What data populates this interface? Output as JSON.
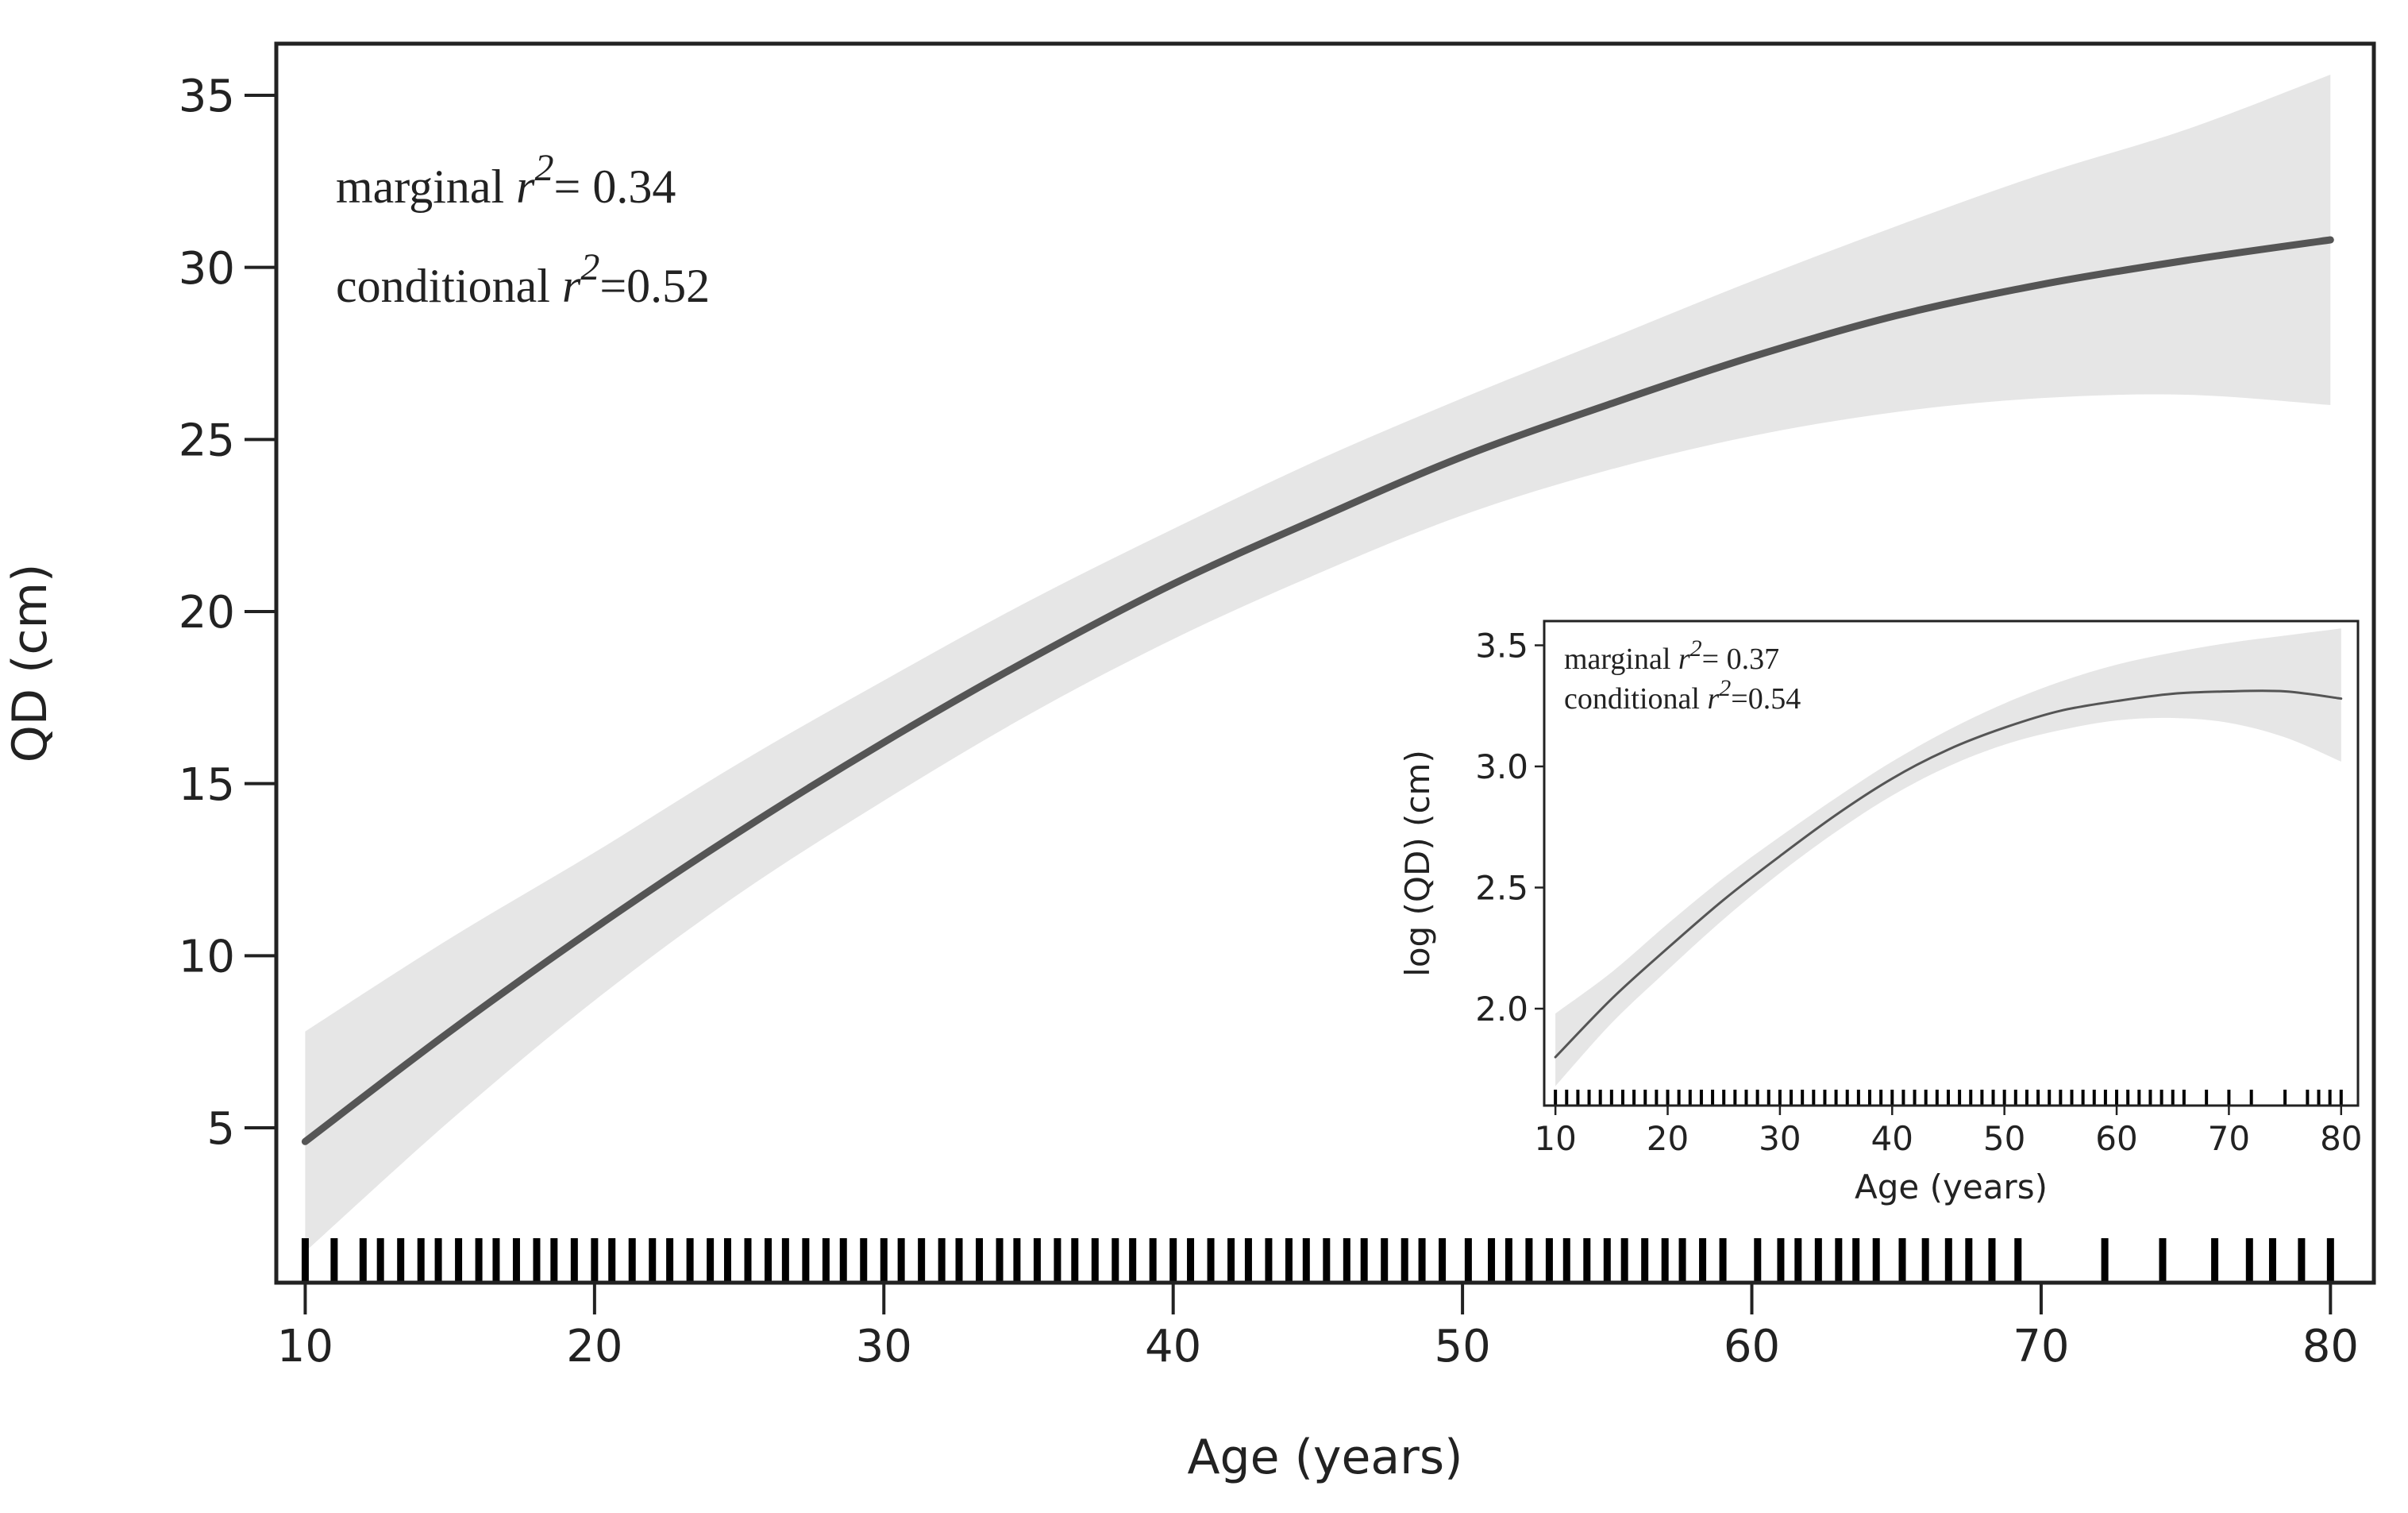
{
  "colors": {
    "band": "#e6e6e6",
    "line": "#555555",
    "axis": "#222222",
    "rug": "#000000"
  },
  "chart_data": [
    {
      "type": "line",
      "panel": "main",
      "xlabel": "Age (years)",
      "ylabel": "QD (cm)",
      "xlim": [
        9,
        81.5
      ],
      "ylim": [
        0.5,
        36.5
      ],
      "xticks": [
        10,
        20,
        30,
        40,
        50,
        60,
        70,
        80
      ],
      "yticks": [
        5,
        10,
        15,
        20,
        25,
        30,
        35
      ],
      "annotation": {
        "line1_prefix": "marginal ",
        "line1_r": "r",
        "line1_exp": "2",
        "line1_suffix": "= 0.34",
        "line2_prefix": "conditional ",
        "line2_r": "r",
        "line2_exp": "2",
        "line2_suffix": "=0.52"
      },
      "series": [
        {
          "name": "fit",
          "x": [
            10,
            15,
            20,
            25,
            30,
            35,
            40,
            45,
            50,
            55,
            60,
            65,
            70,
            75,
            80
          ],
          "y": [
            4.6,
            7.8,
            10.8,
            13.6,
            16.2,
            18.6,
            20.8,
            22.7,
            24.5,
            26.0,
            27.4,
            28.6,
            29.5,
            30.2,
            30.8
          ],
          "lower": [
            1.4,
            5.2,
            8.7,
            11.8,
            14.5,
            17.0,
            19.2,
            21.1,
            22.8,
            24.1,
            25.1,
            25.8,
            26.2,
            26.3,
            26.0
          ],
          "upper": [
            7.8,
            10.5,
            13.0,
            15.6,
            18.0,
            20.3,
            22.4,
            24.4,
            26.2,
            27.9,
            29.6,
            31.2,
            32.7,
            34.0,
            35.6
          ]
        }
      ],
      "rug": [
        10,
        11,
        12,
        12.6,
        13.3,
        14,
        14.6,
        15.3,
        16,
        16.6,
        17.3,
        18,
        18.6,
        19.3,
        20,
        20.6,
        21.3,
        22,
        22.6,
        23.3,
        24,
        24.6,
        25.3,
        26,
        26.6,
        27.3,
        28,
        28.6,
        29.3,
        30,
        30.6,
        31.3,
        32,
        32.6,
        33.3,
        34,
        34.6,
        35.3,
        36,
        36.6,
        37.3,
        38,
        38.6,
        39.3,
        40,
        40.6,
        41.3,
        42,
        42.6,
        43.3,
        44,
        44.6,
        45.3,
        46,
        46.6,
        47.3,
        48,
        48.6,
        49.3,
        50.2,
        51,
        51.6,
        52.3,
        53,
        53.6,
        54.3,
        55,
        55.6,
        56.3,
        57,
        57.6,
        58.3,
        59,
        60.2,
        61,
        61.6,
        62.3,
        63,
        63.6,
        64.3,
        65.2,
        66,
        66.8,
        67.5,
        68.3,
        69.2,
        72.2,
        74.2,
        76,
        77.2,
        78,
        79,
        80
      ]
    },
    {
      "type": "line",
      "panel": "inset",
      "xlabel": "Age (years)",
      "ylabel": "log (QD) (cm)",
      "xlim": [
        9,
        81.5
      ],
      "ylim": [
        1.6,
        3.6
      ],
      "xticks": [
        10,
        20,
        30,
        40,
        50,
        60,
        70,
        80
      ],
      "yticks": [
        2.0,
        2.5,
        3.0,
        3.5
      ],
      "ytick_labels": [
        "2.0",
        "2.5",
        "3.0",
        "3.5"
      ],
      "annotation": {
        "line1_prefix": "marginal ",
        "line1_r": "r",
        "line1_exp": "2",
        "line1_suffix": "= 0.37",
        "line2_prefix": "conditional ",
        "line2_r": "r",
        "line2_exp": "2",
        "line2_suffix": "=0.54"
      },
      "series": [
        {
          "name": "fit",
          "x": [
            10,
            15,
            20,
            25,
            30,
            35,
            40,
            45,
            50,
            55,
            60,
            65,
            70,
            75,
            80
          ],
          "y": [
            1.8,
            2.04,
            2.25,
            2.45,
            2.63,
            2.8,
            2.95,
            3.07,
            3.16,
            3.23,
            3.27,
            3.3,
            3.31,
            3.31,
            3.28
          ],
          "lower": [
            1.68,
            1.94,
            2.16,
            2.37,
            2.56,
            2.73,
            2.88,
            3.0,
            3.09,
            3.15,
            3.19,
            3.2,
            3.18,
            3.12,
            3.02
          ],
          "upper": [
            1.98,
            2.15,
            2.35,
            2.54,
            2.71,
            2.87,
            3.02,
            3.15,
            3.26,
            3.35,
            3.42,
            3.47,
            3.51,
            3.54,
            3.57
          ]
        }
      ],
      "rug": [
        10,
        11,
        12,
        13,
        14,
        15,
        16,
        17,
        18,
        19,
        20,
        21,
        22,
        23,
        24,
        25,
        26,
        27,
        28,
        29,
        30,
        31,
        32,
        33,
        34,
        35,
        36,
        37,
        38,
        39,
        40,
        41,
        42,
        43,
        44,
        45,
        46,
        47,
        48,
        49,
        50,
        51,
        52,
        53,
        54,
        55,
        56,
        57,
        58,
        59,
        60,
        61,
        62,
        63,
        64,
        65,
        66,
        68,
        70,
        72,
        75,
        77,
        78,
        79,
        80
      ]
    }
  ]
}
